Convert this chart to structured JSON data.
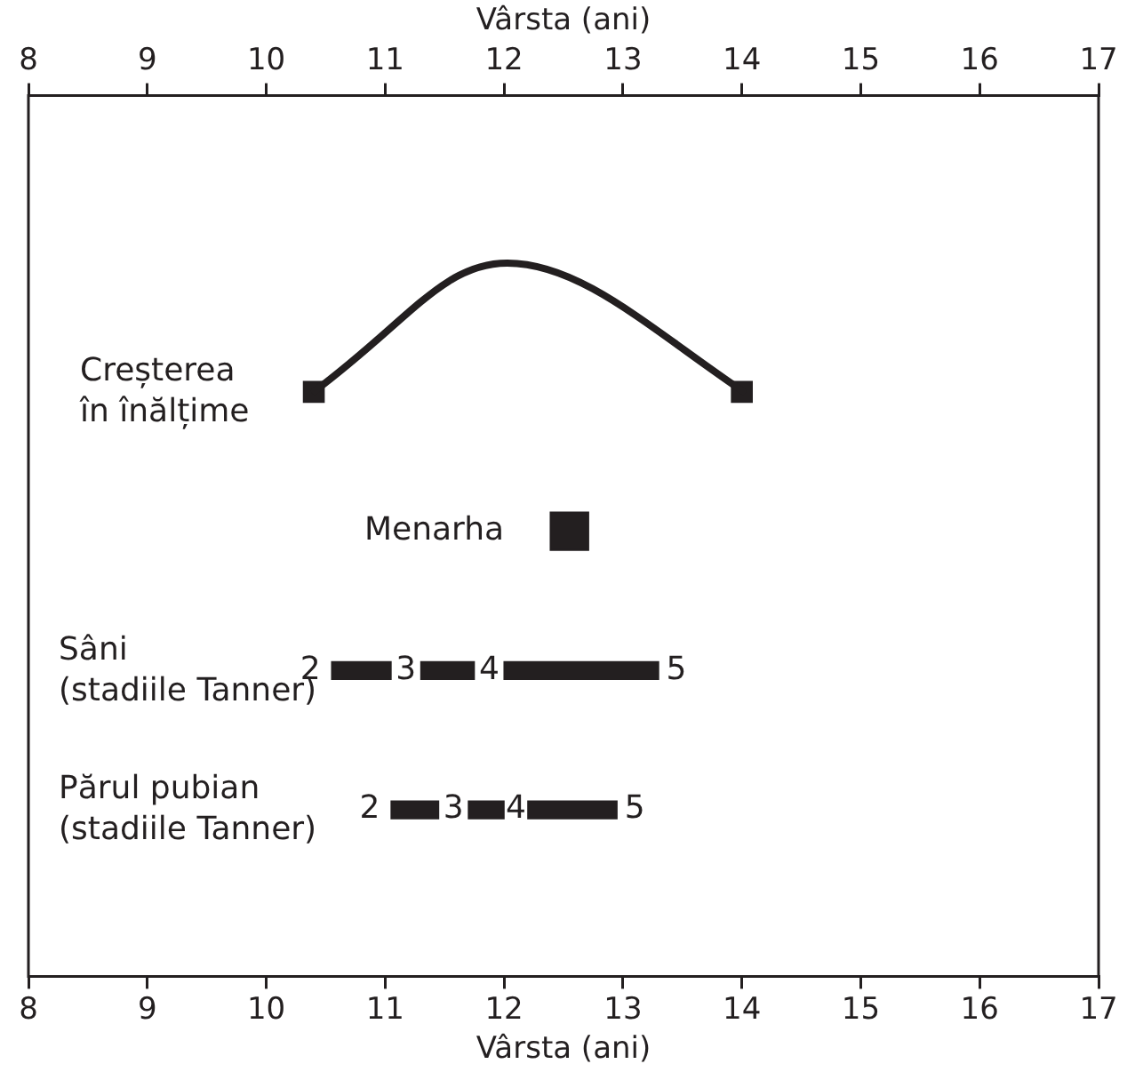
{
  "chart_data": {
    "type": "bar",
    "orientation": "horizontal",
    "xlabel": "Vârsta (ani)",
    "x2label": "Vârsta (ani)",
    "xlim": [
      8,
      17
    ],
    "xticks": [
      8,
      9,
      10,
      11,
      12,
      13,
      14,
      15,
      16,
      17
    ],
    "x2lim": [
      8,
      17
    ],
    "x2ticks": [
      8,
      9,
      10,
      11,
      12,
      13,
      14,
      15,
      16,
      17
    ],
    "categories": [
      "Creșterea în înălțime",
      "Menarha",
      "Sâni (stadiile Tanner)",
      "Părul pubian (stadiile Tanner)"
    ],
    "series": [
      {
        "type": "scatter",
        "color": "#231f20",
        "marker": "square",
        "values": [
          10.4,
          null,
          null,
          null
        ]
      },
      {
        "type": "scatter",
        "color": "#231f20",
        "marker": "square",
        "values": [
          14.0,
          null,
          null,
          null
        ]
      },
      {
        "type": "scatter",
        "color": "#231f20",
        "marker": "square",
        "values": [
          null,
          12.55,
          null,
          null
        ]
      },
      {
        "color": "#231f20",
        "base": [
          null,
          null,
          10.55,
          11.05
        ],
        "values": [
          null,
          null,
          0.5,
          0.4
        ]
      },
      {
        "color": "#231f20",
        "base": [
          null,
          null,
          11.3,
          11.7
        ],
        "values": [
          null,
          null,
          0.45,
          0.3
        ]
      },
      {
        "color": "#231f20",
        "base": [
          null,
          null,
          12.0,
          12.2
        ],
        "values": [
          null,
          null,
          1.3,
          0.75
        ]
      }
    ],
    "annotations": [
      "2",
      "3",
      "4",
      "5",
      "2",
      "3",
      "4",
      "5"
    ],
    "legend": false
  }
}
